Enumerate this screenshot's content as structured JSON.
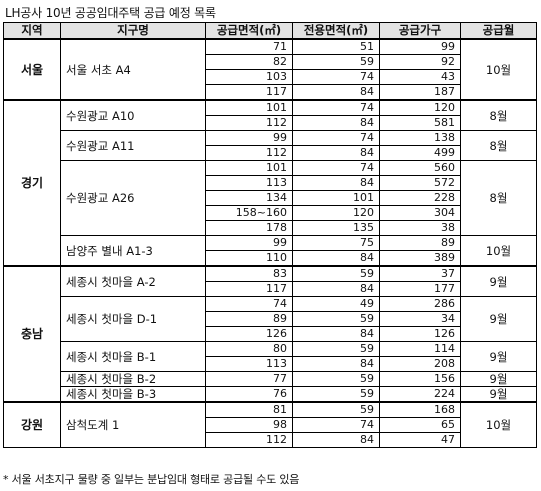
{
  "title": "LH공사 10년 공공임대주택 공급 예정 목록",
  "headers": [
    "지역",
    "지구명",
    "공급면적(㎡)",
    "전용면적(㎡)",
    "공급가구",
    "공급월"
  ],
  "regions": [
    {
      "name": "서울",
      "districts": [
        {
          "name": "서울 서초 A4",
          "month": "10월",
          "rows": [
            [
              "71",
              "51",
              "99"
            ],
            [
              "82",
              "59",
              "92"
            ],
            [
              "103",
              "74",
              "43"
            ],
            [
              "117",
              "84",
              "187"
            ]
          ]
        }
      ]
    },
    {
      "name": "경기",
      "districts": [
        {
          "name": "수원광교 A10",
          "month": "8월",
          "rows": [
            [
              "101",
              "74",
              "120"
            ],
            [
              "112",
              "84",
              "581"
            ]
          ]
        },
        {
          "name": "수원광교 A11",
          "month": "8월",
          "rows": [
            [
              "99",
              "74",
              "138"
            ],
            [
              "112",
              "84",
              "499"
            ]
          ]
        },
        {
          "name": "수원광교 A26",
          "month": "8월",
          "rows": [
            [
              "101",
              "74",
              "560"
            ],
            [
              "113",
              "84",
              "572"
            ],
            [
              "134",
              "101",
              "228"
            ],
            [
              "158~160",
              "120",
              "304"
            ],
            [
              "178",
              "135",
              "38"
            ]
          ]
        },
        {
          "name": "남양주 별내 A1-3",
          "month": "10월",
          "rows": [
            [
              "99",
              "75",
              "89"
            ],
            [
              "110",
              "84",
              "389"
            ]
          ]
        }
      ]
    },
    {
      "name": "충남",
      "districts": [
        {
          "name": "세종시 첫마을 A-2",
          "month": "9월",
          "rows": [
            [
              "83",
              "59",
              "37"
            ],
            [
              "117",
              "84",
              "177"
            ]
          ]
        },
        {
          "name": "세종시 첫마을 D-1",
          "month": "9월",
          "rows": [
            [
              "74",
              "49",
              "286"
            ],
            [
              "89",
              "59",
              "34"
            ],
            [
              "126",
              "84",
              "126"
            ]
          ]
        },
        {
          "name": "세종시 첫마을 B-1",
          "month": "9월",
          "rows": [
            [
              "80",
              "59",
              "114"
            ],
            [
              "113",
              "84",
              "208"
            ]
          ]
        },
        {
          "name": "세종시 첫마을 B-2",
          "month": "9월",
          "rows": [
            [
              "77",
              "59",
              "156"
            ]
          ]
        },
        {
          "name": "세종시 첫마을 B-3",
          "month": "9월",
          "rows": [
            [
              "76",
              "59",
              "224"
            ]
          ]
        }
      ]
    },
    {
      "name": "강원",
      "districts": [
        {
          "name": "삼척도계 1",
          "month": "10월",
          "rows": [
            [
              "81",
              "59",
              "168"
            ],
            [
              "98",
              "74",
              "65"
            ],
            [
              "112",
              "84",
              "47"
            ]
          ]
        }
      ]
    }
  ],
  "footnote": "* 서울 서초지구 물량 중 일부는 분납임대 형태로 공급될 수도 있음"
}
